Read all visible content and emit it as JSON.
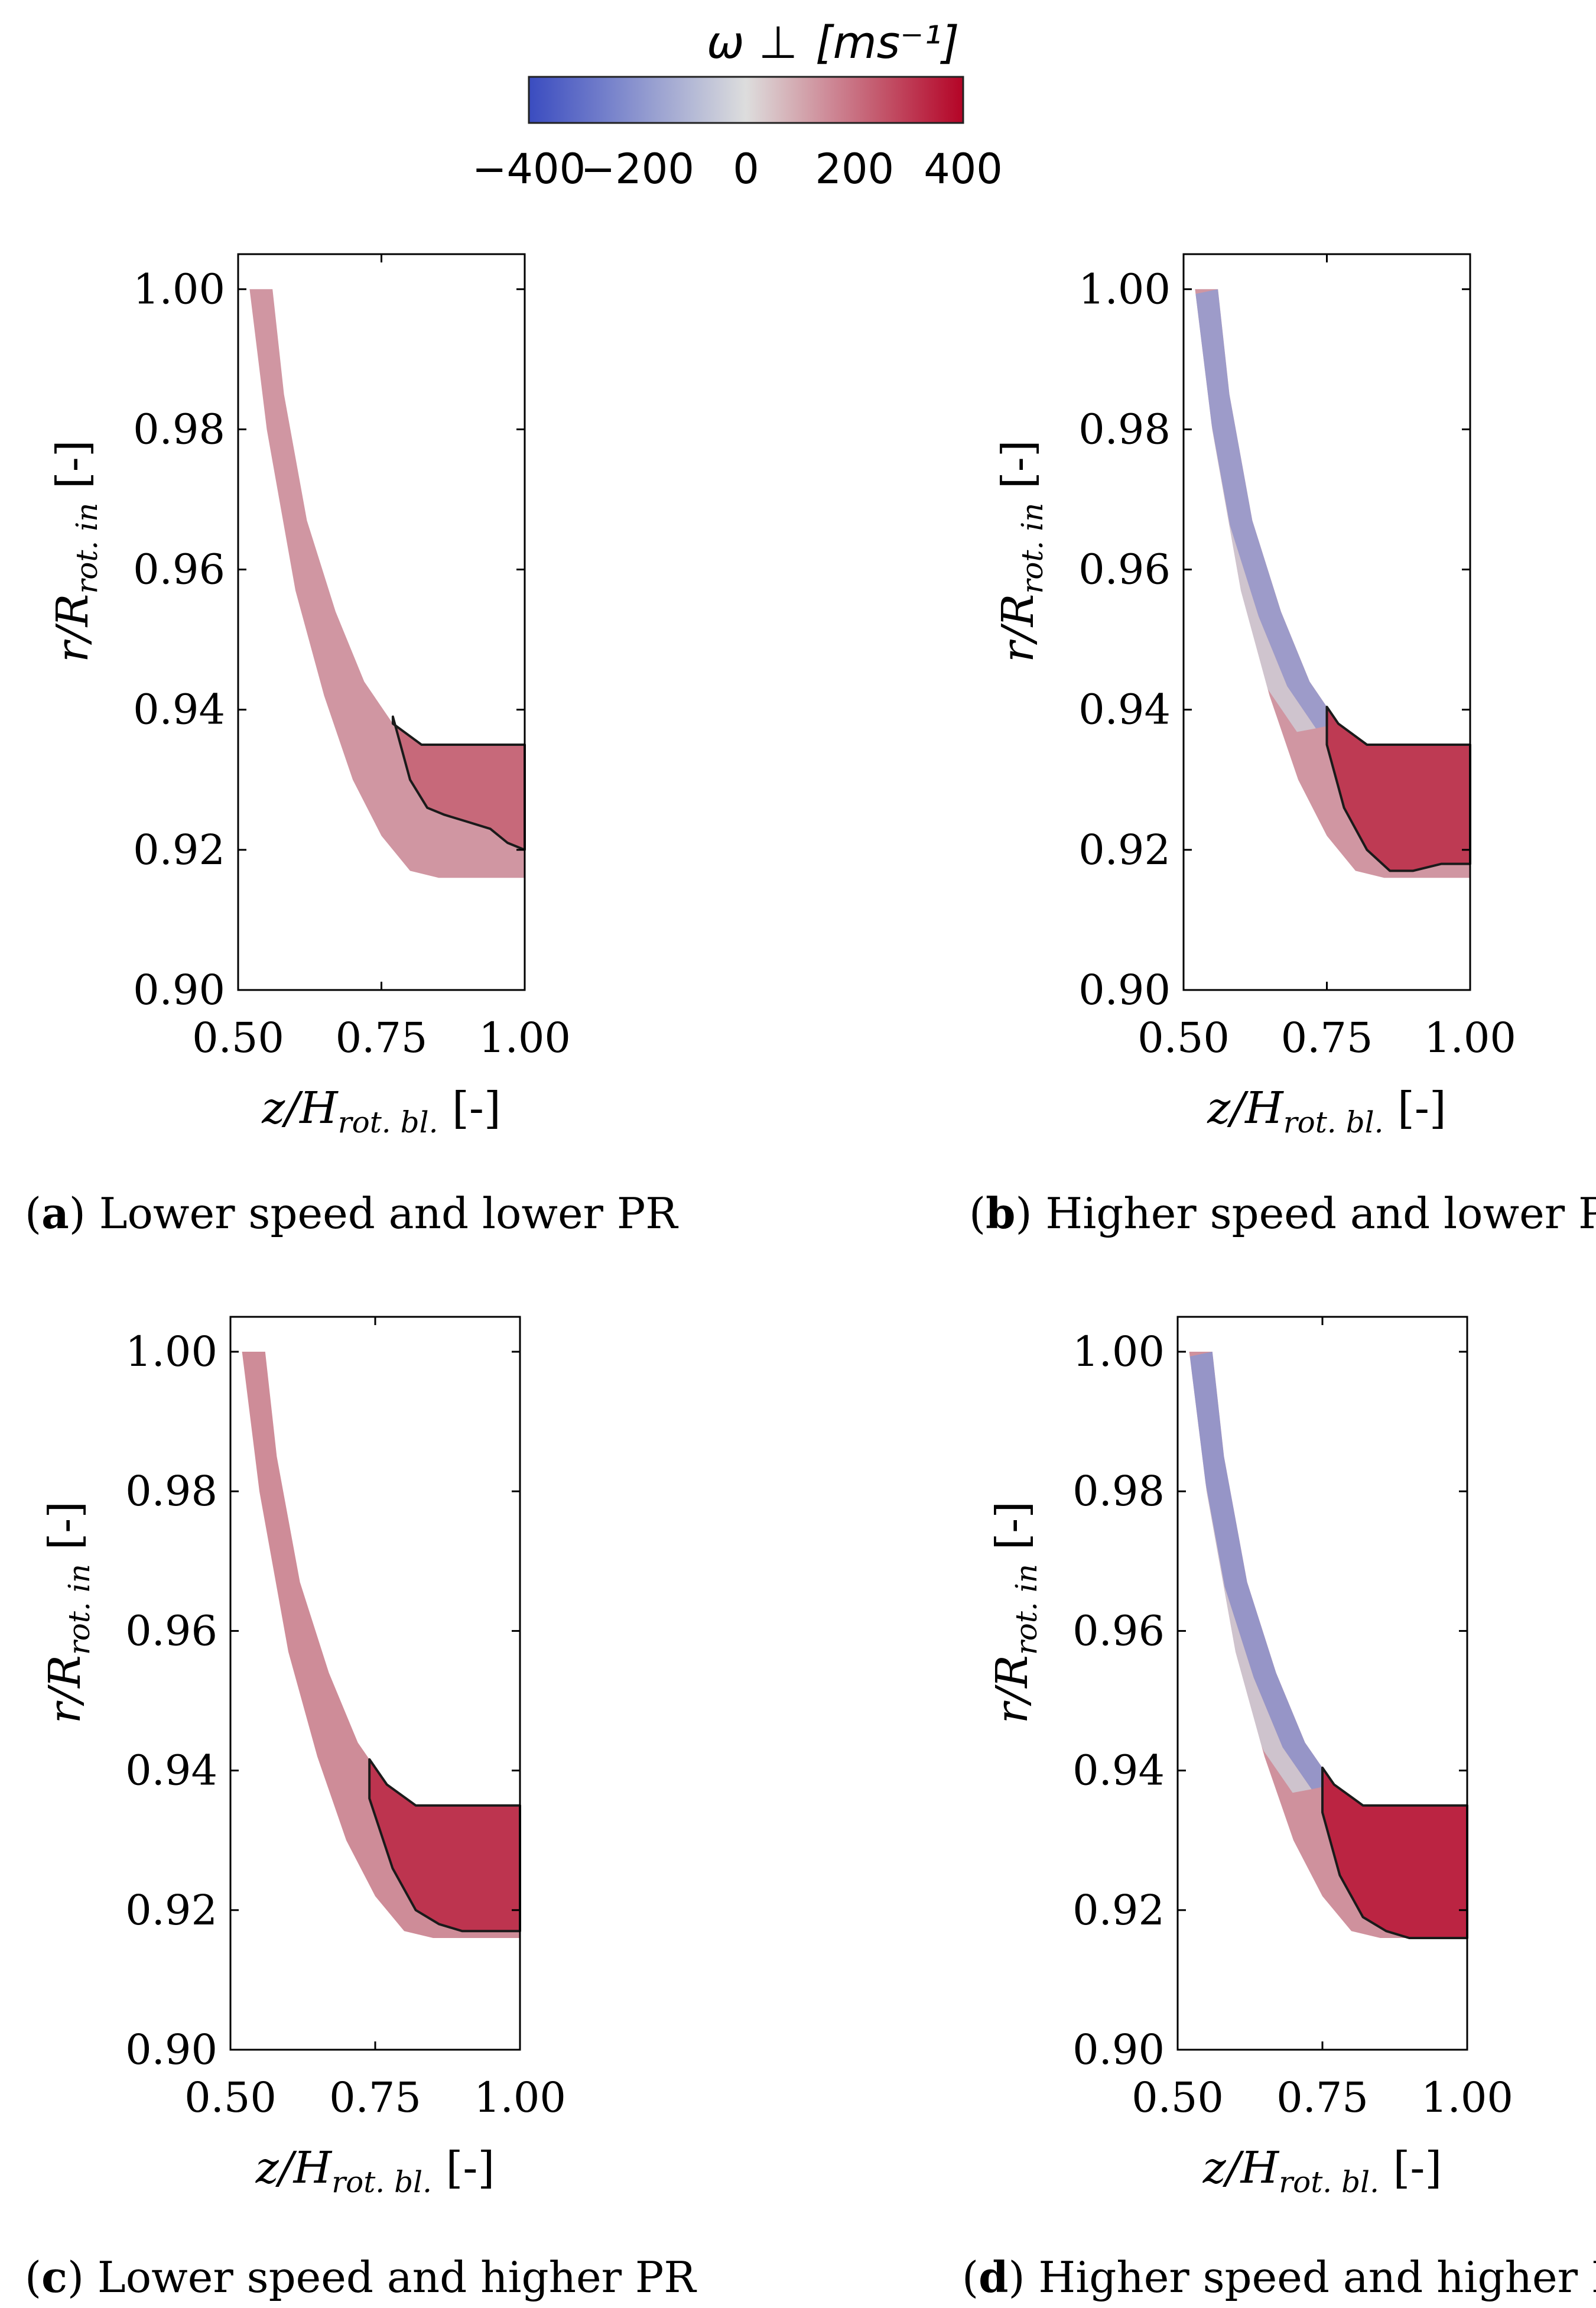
{
  "colorbar": {
    "label": "ω ⊥",
    "unit": "[ms⁻¹]",
    "min": -400,
    "max": 400,
    "ticks": [
      "−400",
      "−200",
      "0",
      "200",
      "400"
    ],
    "tick_values": [
      -400,
      -200,
      0,
      200,
      400
    ],
    "colors": {
      "low": "#3a4cc0",
      "mid": "#dddddd",
      "high": "#b40426"
    }
  },
  "chart_data": [
    {
      "type": "contour",
      "panel_id": "a",
      "caption_letter": "a",
      "caption_text": " Lower speed and lower PR",
      "xlabel": "z/H",
      "xlabel_sub": "rot. bl.",
      "xunit": "[-]",
      "ylabel": "r/R",
      "ylabel_sub": "rot. in",
      "yunit": "[-]",
      "xlim": [
        0.5,
        1.0
      ],
      "ylim": [
        0.9,
        1.005
      ],
      "xticks": [
        "0.50",
        "0.75",
        "1.00"
      ],
      "xtick_values": [
        0.5,
        0.75,
        1.0
      ],
      "yticks": [
        "0.90",
        "0.92",
        "0.94",
        "0.96",
        "0.98",
        "1.00"
      ],
      "ytick_values": [
        0.9,
        0.92,
        0.94,
        0.96,
        0.98,
        1.0
      ],
      "region_outer": [
        [
          0.52,
          1.0
        ],
        [
          0.55,
          0.98
        ],
        [
          0.6,
          0.957
        ],
        [
          0.65,
          0.942
        ],
        [
          0.7,
          0.93
        ],
        [
          0.75,
          0.922
        ],
        [
          0.8,
          0.917
        ],
        [
          0.85,
          0.916
        ],
        [
          0.9,
          0.916
        ],
        [
          1.0,
          0.916
        ]
      ],
      "region_inner": [
        [
          0.56,
          1.0
        ],
        [
          0.58,
          0.985
        ],
        [
          0.62,
          0.967
        ],
        [
          0.67,
          0.954
        ],
        [
          0.72,
          0.944
        ],
        [
          0.77,
          0.938
        ],
        [
          0.82,
          0.935
        ],
        [
          0.88,
          0.935
        ],
        [
          1.0,
          0.935
        ]
      ],
      "field_base": 130,
      "hot_region": {
        "x_start": 0.77,
        "value": 220,
        "lower_line": [
          [
            0.77,
            0.939
          ],
          [
            0.8,
            0.93
          ],
          [
            0.83,
            0.926
          ],
          [
            0.86,
            0.925
          ],
          [
            0.9,
            0.924
          ],
          [
            0.94,
            0.923
          ],
          [
            0.97,
            0.921
          ],
          [
            1.0,
            0.92
          ]
        ]
      },
      "cold_edge": null
    },
    {
      "type": "contour",
      "panel_id": "b",
      "caption_letter": "b",
      "caption_text": " Higher speed and lower PR",
      "xlabel": "z/H",
      "xlabel_sub": "rot. bl.",
      "xunit": "[-]",
      "ylabel": "r/R",
      "ylabel_sub": "rot. in",
      "yunit": "[-]",
      "xlim": [
        0.5,
        1.0
      ],
      "ylim": [
        0.9,
        1.005
      ],
      "xticks": [
        "0.50",
        "0.75",
        "1.00"
      ],
      "xtick_values": [
        0.5,
        0.75,
        1.0
      ],
      "yticks": [
        "0.90",
        "0.92",
        "0.94",
        "0.96",
        "0.98",
        "1.00"
      ],
      "ytick_values": [
        0.9,
        0.92,
        0.94,
        0.96,
        0.98,
        1.0
      ],
      "region_outer": [
        [
          0.52,
          1.0
        ],
        [
          0.55,
          0.98
        ],
        [
          0.6,
          0.957
        ],
        [
          0.65,
          0.942
        ],
        [
          0.7,
          0.93
        ],
        [
          0.75,
          0.922
        ],
        [
          0.8,
          0.917
        ],
        [
          0.85,
          0.916
        ],
        [
          0.9,
          0.916
        ],
        [
          1.0,
          0.916
        ]
      ],
      "region_inner": [
        [
          0.56,
          1.0
        ],
        [
          0.58,
          0.985
        ],
        [
          0.62,
          0.967
        ],
        [
          0.67,
          0.954
        ],
        [
          0.72,
          0.944
        ],
        [
          0.77,
          0.938
        ],
        [
          0.82,
          0.935
        ],
        [
          0.88,
          0.935
        ],
        [
          1.0,
          0.935
        ]
      ],
      "field_base": 130,
      "hot_region": {
        "x_start": 0.75,
        "value": 310,
        "lower_line": [
          [
            0.75,
            0.935
          ],
          [
            0.78,
            0.926
          ],
          [
            0.82,
            0.92
          ],
          [
            0.86,
            0.917
          ],
          [
            0.9,
            0.917
          ],
          [
            0.95,
            0.918
          ],
          [
            1.0,
            0.918
          ]
        ]
      },
      "cold_edge": {
        "value": -180
      }
    },
    {
      "type": "contour",
      "panel_id": "c",
      "caption_letter": "c",
      "caption_text": " Lower speed and higher PR",
      "xlabel": "z/H",
      "xlabel_sub": "rot. bl.",
      "xunit": "[-]",
      "ylabel": "r/R",
      "ylabel_sub": "rot. in",
      "yunit": "[-]",
      "xlim": [
        0.5,
        1.0
      ],
      "ylim": [
        0.9,
        1.005
      ],
      "xticks": [
        "0.50",
        "0.75",
        "1.00"
      ],
      "xtick_values": [
        0.5,
        0.75,
        1.0
      ],
      "yticks": [
        "0.90",
        "0.92",
        "0.94",
        "0.96",
        "0.98",
        "1.00"
      ],
      "ytick_values": [
        0.9,
        0.92,
        0.94,
        0.96,
        0.98,
        1.0
      ],
      "region_outer": [
        [
          0.52,
          1.0
        ],
        [
          0.55,
          0.98
        ],
        [
          0.6,
          0.957
        ],
        [
          0.65,
          0.942
        ],
        [
          0.7,
          0.93
        ],
        [
          0.75,
          0.922
        ],
        [
          0.8,
          0.917
        ],
        [
          0.85,
          0.916
        ],
        [
          0.9,
          0.916
        ],
        [
          1.0,
          0.916
        ]
      ],
      "region_inner": [
        [
          0.56,
          1.0
        ],
        [
          0.58,
          0.985
        ],
        [
          0.62,
          0.967
        ],
        [
          0.67,
          0.954
        ],
        [
          0.72,
          0.944
        ],
        [
          0.77,
          0.938
        ],
        [
          0.82,
          0.935
        ],
        [
          0.88,
          0.935
        ],
        [
          1.0,
          0.935
        ]
      ],
      "field_base": 150,
      "hot_region": {
        "x_start": 0.74,
        "value": 320,
        "lower_line": [
          [
            0.74,
            0.936
          ],
          [
            0.78,
            0.926
          ],
          [
            0.82,
            0.92
          ],
          [
            0.86,
            0.918
          ],
          [
            0.9,
            0.917
          ],
          [
            0.95,
            0.917
          ],
          [
            1.0,
            0.917
          ]
        ]
      },
      "cold_edge": null
    },
    {
      "type": "contour",
      "panel_id": "d",
      "caption_letter": "d",
      "caption_text": " Higher speed and higher PR",
      "xlabel": "z/H",
      "xlabel_sub": "rot. bl.",
      "xunit": "[-]",
      "ylabel": "r/R",
      "ylabel_sub": "rot. in",
      "yunit": "[-]",
      "xlim": [
        0.5,
        1.0
      ],
      "ylim": [
        0.9,
        1.005
      ],
      "xticks": [
        "0.50",
        "0.75",
        "1.00"
      ],
      "xtick_values": [
        0.5,
        0.75,
        1.0
      ],
      "yticks": [
        "0.90",
        "0.92",
        "0.94",
        "0.96",
        "0.98",
        "1.00"
      ],
      "ytick_values": [
        0.9,
        0.92,
        0.94,
        0.96,
        0.98,
        1.0
      ],
      "region_outer": [
        [
          0.52,
          1.0
        ],
        [
          0.55,
          0.98
        ],
        [
          0.6,
          0.957
        ],
        [
          0.65,
          0.942
        ],
        [
          0.7,
          0.93
        ],
        [
          0.75,
          0.922
        ],
        [
          0.8,
          0.917
        ],
        [
          0.85,
          0.916
        ],
        [
          0.9,
          0.916
        ],
        [
          1.0,
          0.916
        ]
      ],
      "region_inner": [
        [
          0.56,
          1.0
        ],
        [
          0.58,
          0.985
        ],
        [
          0.62,
          0.967
        ],
        [
          0.67,
          0.954
        ],
        [
          0.72,
          0.944
        ],
        [
          0.77,
          0.938
        ],
        [
          0.82,
          0.935
        ],
        [
          0.88,
          0.935
        ],
        [
          1.0,
          0.935
        ]
      ],
      "field_base": 140,
      "hot_region": {
        "x_start": 0.75,
        "value": 350,
        "lower_line": [
          [
            0.75,
            0.934
          ],
          [
            0.78,
            0.925
          ],
          [
            0.82,
            0.919
          ],
          [
            0.86,
            0.917
          ],
          [
            0.9,
            0.916
          ],
          [
            0.95,
            0.916
          ],
          [
            1.0,
            0.916
          ]
        ]
      },
      "cold_edge": {
        "value": -200
      }
    }
  ]
}
